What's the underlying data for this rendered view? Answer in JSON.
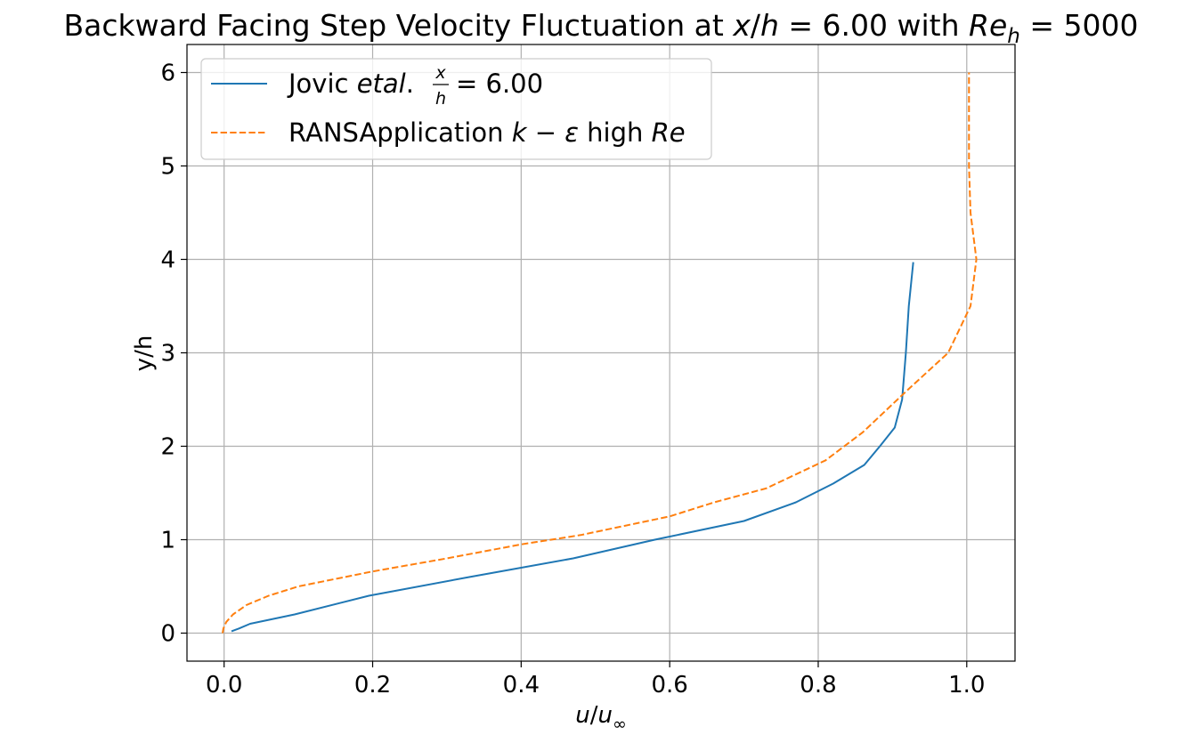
{
  "chart_data": {
    "type": "line",
    "title": "Backward Facing Step Velocity Fluctuation at x/h = 6.00 with Re_h = 5000",
    "xlabel": "u/u∞",
    "ylabel": "y/h",
    "xlim": [
      -0.05,
      1.065
    ],
    "ylim": [
      -0.3,
      6.3
    ],
    "xticks": [
      0.0,
      0.2,
      0.4,
      0.6,
      0.8,
      1.0
    ],
    "xtick_labels": [
      "0.0",
      "0.2",
      "0.4",
      "0.6",
      "0.8",
      "1.0"
    ],
    "yticks": [
      0,
      1,
      2,
      3,
      4,
      5,
      6
    ],
    "ytick_labels": [
      "0",
      "1",
      "2",
      "3",
      "4",
      "5",
      "6"
    ],
    "grid": true,
    "legend_position": "top-left",
    "series": [
      {
        "name": "Jovic etal. x/h = 6.00",
        "color": "#1f77b4",
        "style": "solid",
        "x": [
          0.01,
          0.02,
          0.035,
          0.095,
          0.195,
          0.33,
          0.47,
          0.58,
          0.7,
          0.77,
          0.82,
          0.862,
          0.883,
          0.903,
          0.913,
          0.918,
          0.922,
          0.928
        ],
        "y": [
          0.02,
          0.05,
          0.1,
          0.2,
          0.4,
          0.6,
          0.8,
          1.0,
          1.2,
          1.4,
          1.6,
          1.8,
          2.0,
          2.2,
          2.5,
          3.0,
          3.5,
          3.97
        ]
      },
      {
        "name": "RANSApplication k − ε high Re",
        "color": "#ff7f0e",
        "style": "dashed",
        "x": [
          -0.002,
          -0.001,
          0.003,
          0.012,
          0.03,
          0.06,
          0.1,
          0.2,
          0.3,
          0.4,
          0.48,
          0.6,
          0.66,
          0.73,
          0.81,
          0.86,
          0.92,
          0.975,
          1.005,
          1.013,
          1.005,
          1.003,
          1.003
        ],
        "y": [
          0.0,
          0.05,
          0.12,
          0.2,
          0.3,
          0.4,
          0.5,
          0.66,
          0.8,
          0.95,
          1.05,
          1.25,
          1.4,
          1.55,
          1.85,
          2.15,
          2.6,
          3.0,
          3.5,
          4.0,
          4.5,
          5.0,
          6.0
        ]
      }
    ]
  }
}
